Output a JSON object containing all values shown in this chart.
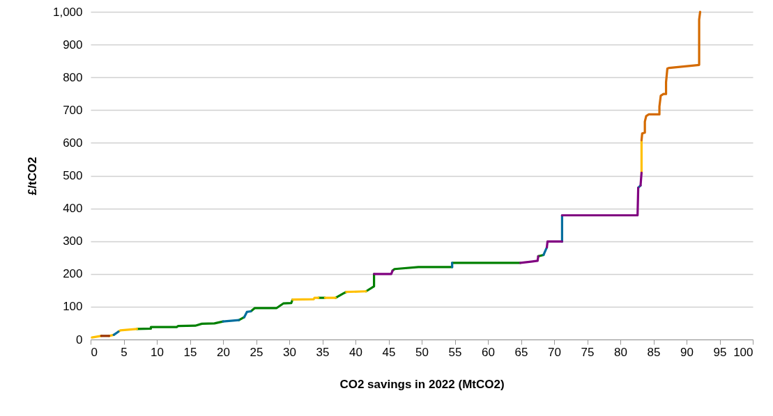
{
  "chart_data": {
    "type": "line",
    "xlabel": "CO2 savings in 2022 (MtCO2)",
    "ylabel": "£/tCO2",
    "xlim": [
      0,
      100
    ],
    "xticks": [
      0,
      5,
      10,
      15,
      20,
      25,
      30,
      35,
      40,
      45,
      50,
      55,
      60,
      65,
      70,
      75,
      80,
      85,
      90,
      95,
      100
    ],
    "ylim": [
      0,
      1000
    ],
    "yticks": [
      0,
      100,
      200,
      300,
      400,
      500,
      600,
      700,
      800,
      900,
      {
        "value": 1000,
        "label": "1,000"
      }
    ],
    "grid": "y",
    "line_style": "solid",
    "marker": "none",
    "series": [
      {
        "color": "#008000",
        "x": [
          7.0,
          9.1,
          9.1,
          13.0,
          13.2,
          15.8,
          16.8,
          18.7,
          20.0,
          null,
          22.4,
          23.2,
          null,
          24.2,
          24.8,
          28.1,
          29.1,
          30.3,
          30.5,
          null,
          34.4,
          35.4,
          null,
          37.0,
          38.2,
          38.6,
          null,
          41.6,
          42.8,
          42.8,
          null,
          45.6,
          45.9,
          49.5,
          54.6,
          null,
          54.6,
          64.9,
          null,
          67.6,
          68.4
        ],
        "values": [
          32,
          33,
          38,
          38,
          41,
          42,
          48,
          49,
          55,
          null,
          59,
          68,
          null,
          86,
          96,
          96,
          110,
          111,
          122,
          null,
          127,
          127,
          null,
          127,
          141,
          145,
          null,
          147,
          162,
          200,
          null,
          210,
          215,
          221,
          221,
          null,
          234,
          234,
          null,
          254,
          258
        ]
      },
      {
        "color": "#ffc000",
        "x": [
          0.2,
          1.6,
          null,
          2.8,
          3.5,
          null,
          4.2,
          4.5,
          7.0,
          null,
          30.5,
          33.7,
          33.8,
          34.4,
          null,
          35.4,
          37.0,
          null,
          38.6,
          41.6,
          null,
          83.2,
          83.2
        ],
        "values": [
          6,
          11,
          null,
          11,
          14,
          null,
          24,
          28,
          32,
          null,
          122,
          123,
          127,
          127,
          null,
          127,
          127,
          null,
          145,
          147,
          null,
          509,
          608
        ]
      },
      {
        "color": "#993300",
        "x": [
          1.6,
          2.8
        ],
        "values": [
          11,
          11
        ]
      },
      {
        "color": "#006e9e",
        "x": [
          3.5,
          4.2,
          null,
          20.0,
          22.4,
          null,
          23.2,
          23.6,
          24.2,
          null,
          54.6,
          54.6,
          null,
          68.4,
          68.9,
          null,
          71.2,
          71.2,
          null,
          82.7,
          83.05
        ],
        "values": [
          14,
          24,
          null,
          55,
          59,
          null,
          68,
          84,
          86,
          null,
          221,
          234,
          null,
          258,
          281,
          null,
          299,
          379,
          null,
          463,
          470
        ]
      },
      {
        "color": "#800080",
        "x": [
          42.8,
          45.4,
          45.6,
          null,
          64.9,
          67.5,
          67.6,
          null,
          68.9,
          69.0,
          71.2,
          null,
          71.2,
          82.6,
          82.7,
          null,
          83.05,
          83.2
        ],
        "values": [
          200,
          200,
          210,
          null,
          234,
          240,
          254,
          null,
          281,
          299,
          299,
          null,
          379,
          379,
          463,
          null,
          470,
          509
        ]
      },
      {
        "color": "#d46a00",
        "x": [
          83.2,
          83.3,
          83.7,
          83.7,
          83.9,
          84.3,
          85.9,
          85.9,
          86.1,
          86.5,
          86.9,
          86.9,
          87.1,
          87.4,
          91.9,
          91.9,
          92.05
        ],
        "values": [
          608,
          629,
          631,
          665,
          682,
          687,
          687,
          711,
          744,
          749,
          749,
          785,
          827,
          829,
          838,
          976,
          1000
        ]
      }
    ]
  }
}
